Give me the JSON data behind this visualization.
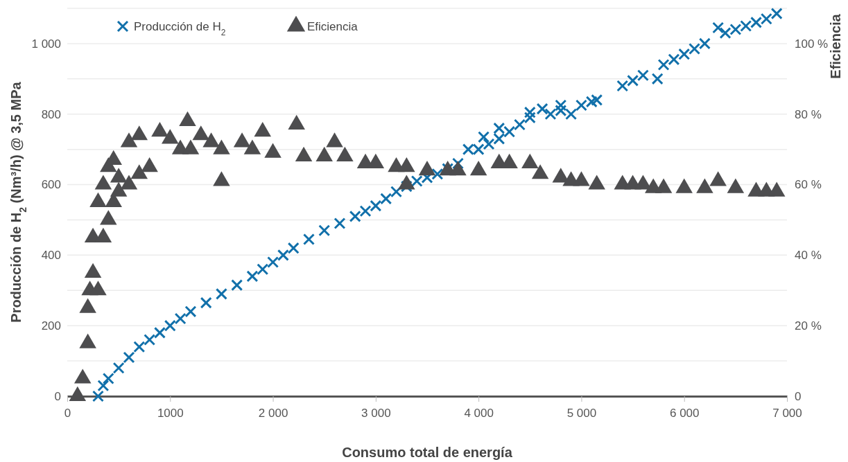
{
  "chart_data": {
    "type": "scatter",
    "xlabel": "Consumo total de energía",
    "ylabel": "Producción de H$_{2}$ (Nm³/h) @ 3,5 MPa",
    "y2label": "Eficiencia",
    "xlim": [
      0,
      7000
    ],
    "xticks": [
      0,
      {
        "value": 1000,
        "label": "1000"
      },
      {
        "value": 2000,
        "label": "2 000"
      },
      {
        "value": 3000,
        "label": "3 000"
      },
      {
        "value": 4000,
        "label": "4 000"
      },
      {
        "value": 5000,
        "label": "5 000"
      },
      {
        "value": 6000,
        "label": "6 000"
      },
      {
        "value": 7000,
        "label": "7 000"
      }
    ],
    "ylim": [
      0,
      1100
    ],
    "yticks": [
      0,
      {
        "value": 100,
        "label": null
      },
      200,
      {
        "value": 300,
        "label": null
      },
      400,
      {
        "value": 500,
        "label": null
      },
      600,
      {
        "value": 700,
        "label": null
      },
      800,
      {
        "value": 900,
        "label": null
      },
      {
        "value": 1000,
        "label": "1 000"
      },
      {
        "value": 1100,
        "label": null
      }
    ],
    "y2lim": [
      0,
      110
    ],
    "y2ticks": [
      0,
      {
        "value": 20,
        "label": "20 %"
      },
      {
        "value": 40,
        "label": "40 %"
      },
      {
        "value": 60,
        "label": "60 %"
      },
      {
        "value": 80,
        "label": "80 %"
      },
      {
        "value": 100,
        "label": "100 %"
      }
    ],
    "grid": "y",
    "legend": "top left",
    "series": [
      {
        "name": "Producción de H$_{2}$",
        "color": "#1170aa",
        "marker": "cross",
        "x": [
          300,
          350,
          400,
          500,
          600,
          700,
          800,
          900,
          1000,
          1100,
          1200,
          1350,
          1500,
          1650,
          1800,
          1900,
          2000,
          2100,
          2200,
          2350,
          2500,
          2650,
          2800,
          2900,
          3000,
          3100,
          3200,
          3300,
          3400,
          3500,
          3600,
          3700,
          3800,
          3900,
          4000,
          4050,
          4100,
          4200,
          4200,
          4300,
          4400,
          4500,
          4500,
          4620,
          4700,
          4800,
          4800,
          4900,
          5000,
          5100,
          5150,
          5400,
          5500,
          5600,
          5740,
          5800,
          5900,
          6000,
          6100,
          6200,
          6330,
          6400,
          6500,
          6600,
          6700,
          6800,
          6900
        ],
        "values": [
          0,
          30,
          50,
          80,
          110,
          140,
          160,
          180,
          200,
          220,
          240,
          265,
          290,
          315,
          340,
          360,
          380,
          400,
          420,
          445,
          470,
          490,
          510,
          525,
          540,
          560,
          580,
          595,
          610,
          620,
          630,
          645,
          660,
          700,
          700,
          735,
          715,
          730,
          760,
          750,
          770,
          790,
          805,
          815,
          800,
          810,
          825,
          800,
          825,
          835,
          840,
          880,
          895,
          910,
          900,
          940,
          955,
          970,
          985,
          1000,
          1045,
          1030,
          1040,
          1050,
          1060,
          1070,
          1085
        ]
      },
      {
        "name": "Eficiencia",
        "color": "#4d4d4f",
        "marker": "triangle",
        "axis": "y2",
        "x": [
          100,
          150,
          200,
          200,
          220,
          250,
          250,
          300,
          300,
          350,
          350,
          400,
          400,
          450,
          450,
          500,
          500,
          600,
          600,
          700,
          700,
          800,
          900,
          1000,
          1100,
          1170,
          1200,
          1300,
          1400,
          1500,
          1500,
          1700,
          1800,
          1900,
          2000,
          2230,
          2300,
          2500,
          2600,
          2700,
          2900,
          3000,
          3200,
          3300,
          3300,
          3500,
          3700,
          3800,
          4000,
          4200,
          4300,
          4500,
          4600,
          4800,
          4900,
          5000,
          5150,
          5400,
          5500,
          5600,
          5700,
          5800,
          6000,
          6200,
          6330,
          6500,
          6700,
          6800,
          6900
        ],
        "values": [
          0,
          5,
          15,
          25,
          30,
          35,
          45,
          30,
          55,
          45,
          60,
          50,
          65,
          55,
          67,
          58,
          62,
          60,
          72,
          63,
          74,
          65,
          75,
          73,
          70,
          78,
          70,
          74,
          72,
          70,
          61,
          72,
          70,
          75,
          69,
          77,
          68,
          68,
          72,
          68,
          66,
          66,
          65,
          65,
          60,
          64,
          64,
          64,
          64,
          66,
          66,
          66,
          63,
          62,
          61,
          61,
          60,
          60,
          60,
          60,
          59,
          59,
          59,
          59,
          61,
          59,
          58,
          58,
          58
        ]
      }
    ]
  }
}
